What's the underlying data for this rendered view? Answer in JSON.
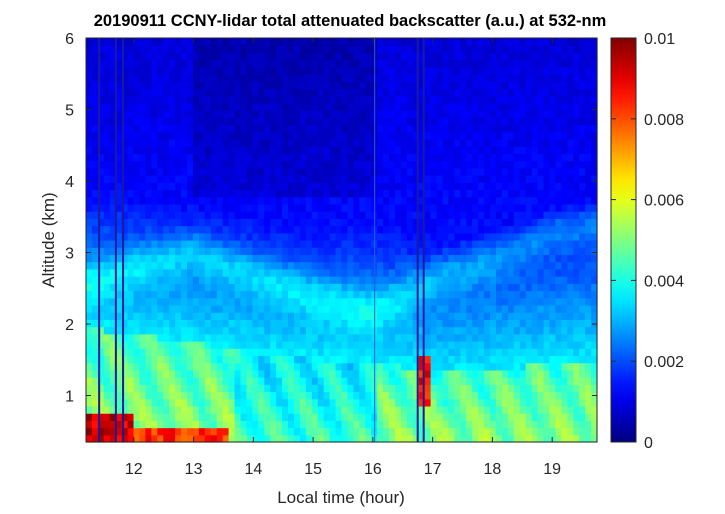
{
  "chart_data": {
    "type": "heatmap",
    "title": "20190911 CCNY-lidar total attenuated backscatter (a.u.) at 532-nm",
    "xlabel": "Local time (hour)",
    "ylabel": "Altitude (km)",
    "xlim": [
      11.2,
      19.75
    ],
    "ylim": [
      0.35,
      6.0
    ],
    "xticks": [
      12,
      13,
      14,
      15,
      16,
      17,
      18,
      19
    ],
    "xtick_labels": [
      "12",
      "13",
      "14",
      "15",
      "16",
      "17",
      "18",
      "19"
    ],
    "yticks": [
      1,
      2,
      3,
      4,
      5,
      6
    ],
    "ytick_labels": [
      "1",
      "2",
      "3",
      "4",
      "5",
      "6"
    ],
    "colorbar": {
      "colormap": "jet",
      "range": [
        0,
        0.01
      ],
      "ticks": [
        0,
        0.002,
        0.004,
        0.006,
        0.008,
        0.01
      ],
      "tick_labels": [
        "0",
        "0.002",
        "0.004",
        "0.006",
        "0.008",
        "0.01"
      ]
    },
    "data_gap_lines_hour": [
      11.42,
      11.7,
      11.82,
      16.75,
      16.85
    ],
    "data_discontinuity_hour": 16.03,
    "features": {
      "cloud_layers": [
        {
          "time": [
            11.2,
            11.95
          ],
          "altitude_km": [
            0.35,
            0.75
          ],
          "backscatter": 0.01
        },
        {
          "time": [
            11.95,
            13.6
          ],
          "altitude_km": [
            0.35,
            0.6
          ],
          "backscatter": 0.009
        },
        {
          "time": [
            16.75,
            16.97
          ],
          "altitude_km": [
            0.9,
            1.55
          ],
          "backscatter": 0.0095
        }
      ],
      "boundary_layer_top_km": {
        "hours": [
          11.2,
          12,
          13,
          14,
          15,
          16,
          17,
          18,
          19,
          19.75
        ],
        "altitude_km": [
          1.95,
          1.85,
          1.75,
          1.6,
          1.5,
          1.5,
          1.3,
          1.35,
          1.45,
          1.5
        ]
      },
      "aerosol_layer_km": {
        "hours": [
          11.2,
          12,
          13,
          14,
          15,
          16,
          17,
          18,
          19,
          19.75
        ],
        "altitude_km": [
          2.6,
          2.8,
          3.0,
          2.7,
          2.4,
          2.2,
          2.6,
          2.9,
          3.3,
          3.4
        ]
      }
    },
    "grid": false,
    "legend": "none"
  }
}
